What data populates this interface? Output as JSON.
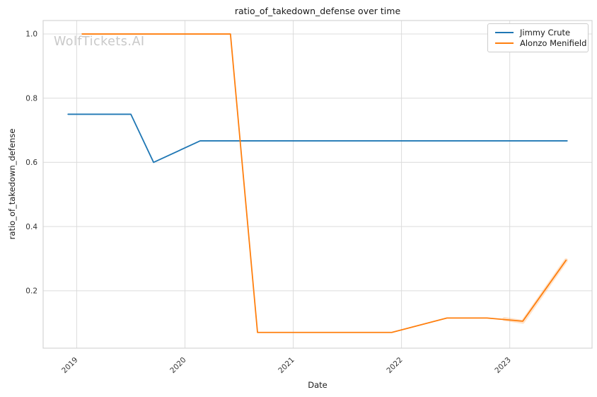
{
  "chart_data": {
    "type": "line",
    "title": "ratio_of_takedown_defense over time",
    "xlabel": "Date",
    "ylabel": "ratio_of_takedown_defense",
    "watermark": "WolfTickets.AI",
    "x_unit": "decimal_year",
    "xlim": [
      2018.69,
      2023.76
    ],
    "ylim": [
      0.021,
      1.042
    ],
    "xticks": [
      "2019",
      "2020",
      "2021",
      "2022",
      "2023"
    ],
    "xtick_values": [
      2019,
      2020,
      2021,
      2022,
      2023
    ],
    "yticks": [
      "0.2",
      "0.4",
      "0.6",
      "0.8",
      "1.0"
    ],
    "ytick_values": [
      0.2,
      0.4,
      0.6,
      0.8,
      1.0
    ],
    "grid": true,
    "legend_position": "upper right",
    "series": [
      {
        "name": "Jimmy Crute",
        "color": "#1f77b4",
        "x": [
          2018.92,
          2019.5,
          2019.71,
          2020.14,
          2023.53
        ],
        "values": [
          0.75,
          0.75,
          0.6,
          0.667,
          0.667
        ]
      },
      {
        "name": "Alonzo Menifield",
        "color": "#ff7f0e",
        "x": [
          2019.05,
          2020.42,
          2020.67,
          2021.91,
          2022.42,
          2022.79,
          2023.12,
          2023.52
        ],
        "values": [
          1.0,
          1.0,
          0.07,
          0.07,
          0.115,
          0.115,
          0.105,
          0.295
        ]
      }
    ],
    "uncertainty_band": {
      "series": "Alonzo Menifield",
      "color": "#ff7f0e",
      "opacity": 0.22,
      "x": [
        2022.95,
        2023.12,
        2023.52
      ],
      "values": [
        0.112,
        0.103,
        0.295
      ]
    },
    "style": {
      "grid_color": "#dcdcdc",
      "spine_color": "#d4d4d4",
      "tick_label_color": "#333333",
      "line_width": 1.8
    }
  }
}
